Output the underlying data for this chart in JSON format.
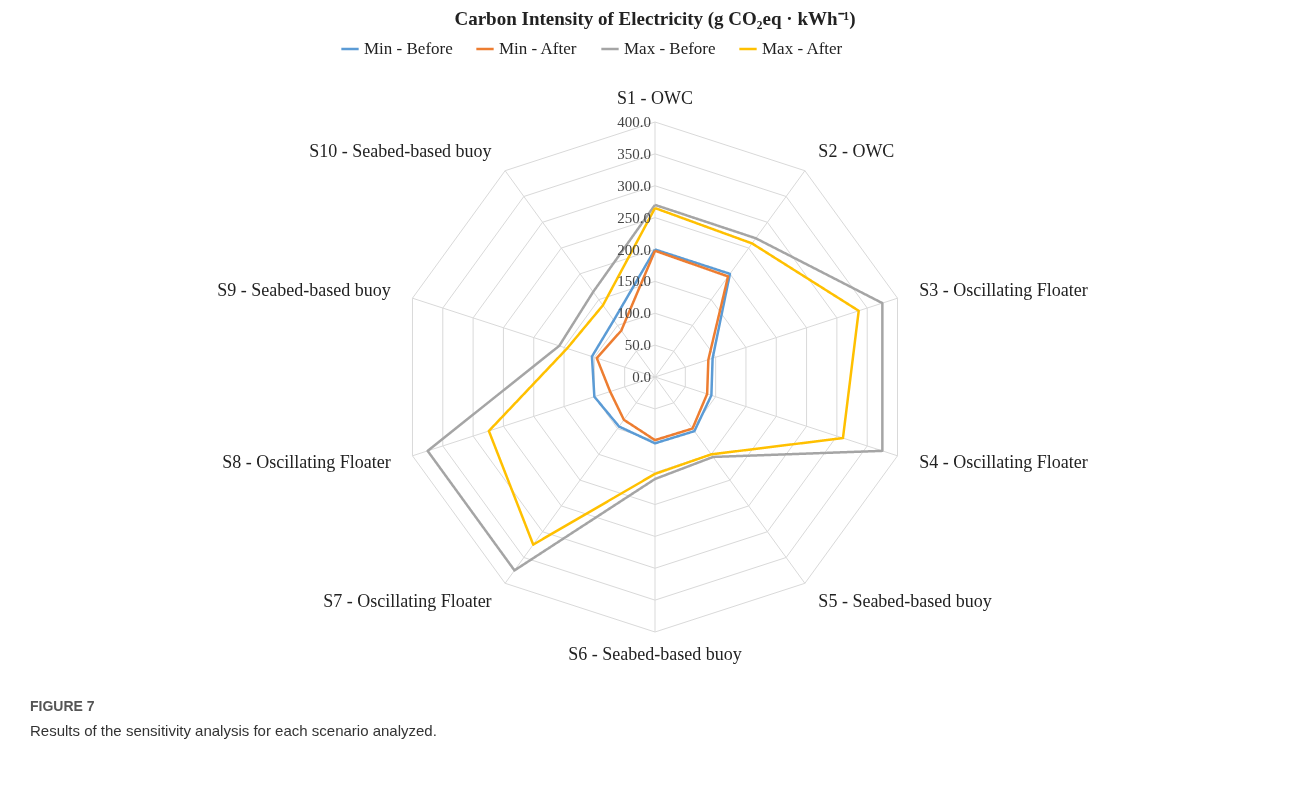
{
  "chart_data": {
    "type": "radar",
    "title": "Carbon Intensity of Electricity (g CO₂eq · kWh⁻¹)",
    "categories": [
      "S1 - OWC",
      "S2 - OWC",
      "S3 - Oscillating Floater",
      "S4 - Oscillating Floater",
      "S5 - Seabed-based buoy",
      "S6 - Seabed-based buoy",
      "S7 - Oscillating Floater",
      "S8 - Oscillating Floater",
      "S9 - Seabed-based buoy",
      "S10 - Seabed-based buoy"
    ],
    "series": [
      {
        "name": "Min - Before",
        "color": "#5b9bd5",
        "values": [
          200,
          200,
          95,
          93,
          105,
          104,
          96,
          100,
          104,
          110
        ]
      },
      {
        "name": "Min - After",
        "color": "#ed7d31",
        "values": [
          198,
          195,
          88,
          86,
          100,
          99,
          83,
          74,
          96,
          90
        ]
      },
      {
        "name": "Max - Before",
        "color": "#a5a5a5",
        "values": [
          270,
          269,
          375,
          375,
          155,
          160,
          375,
          375,
          158,
          165
        ]
      },
      {
        "name": "Max - After",
        "color": "#ffc000",
        "values": [
          265,
          259,
          336,
          310,
          150,
          152,
          325,
          274,
          145,
          139
        ]
      }
    ],
    "ylim": [
      0,
      400
    ],
    "yticks": [
      {
        "value": 0,
        "label": "0.0"
      },
      {
        "value": 50,
        "label": "50.0"
      },
      {
        "value": 100,
        "label": "100.0"
      },
      {
        "value": 150,
        "label": "150.0"
      },
      {
        "value": 200,
        "label": "200.0"
      },
      {
        "value": 250,
        "label": "250.0"
      },
      {
        "value": 300,
        "label": "300.0"
      },
      {
        "value": 350,
        "label": "350.0"
      },
      {
        "value": 400,
        "label": "400.0"
      }
    ],
    "grid": true,
    "legend": "top",
    "marker": "none",
    "line_style": "solid",
    "annotations": [
      "FIGURE 7",
      "Results of the sensitivity analysis for each scenario analyzed."
    ]
  }
}
